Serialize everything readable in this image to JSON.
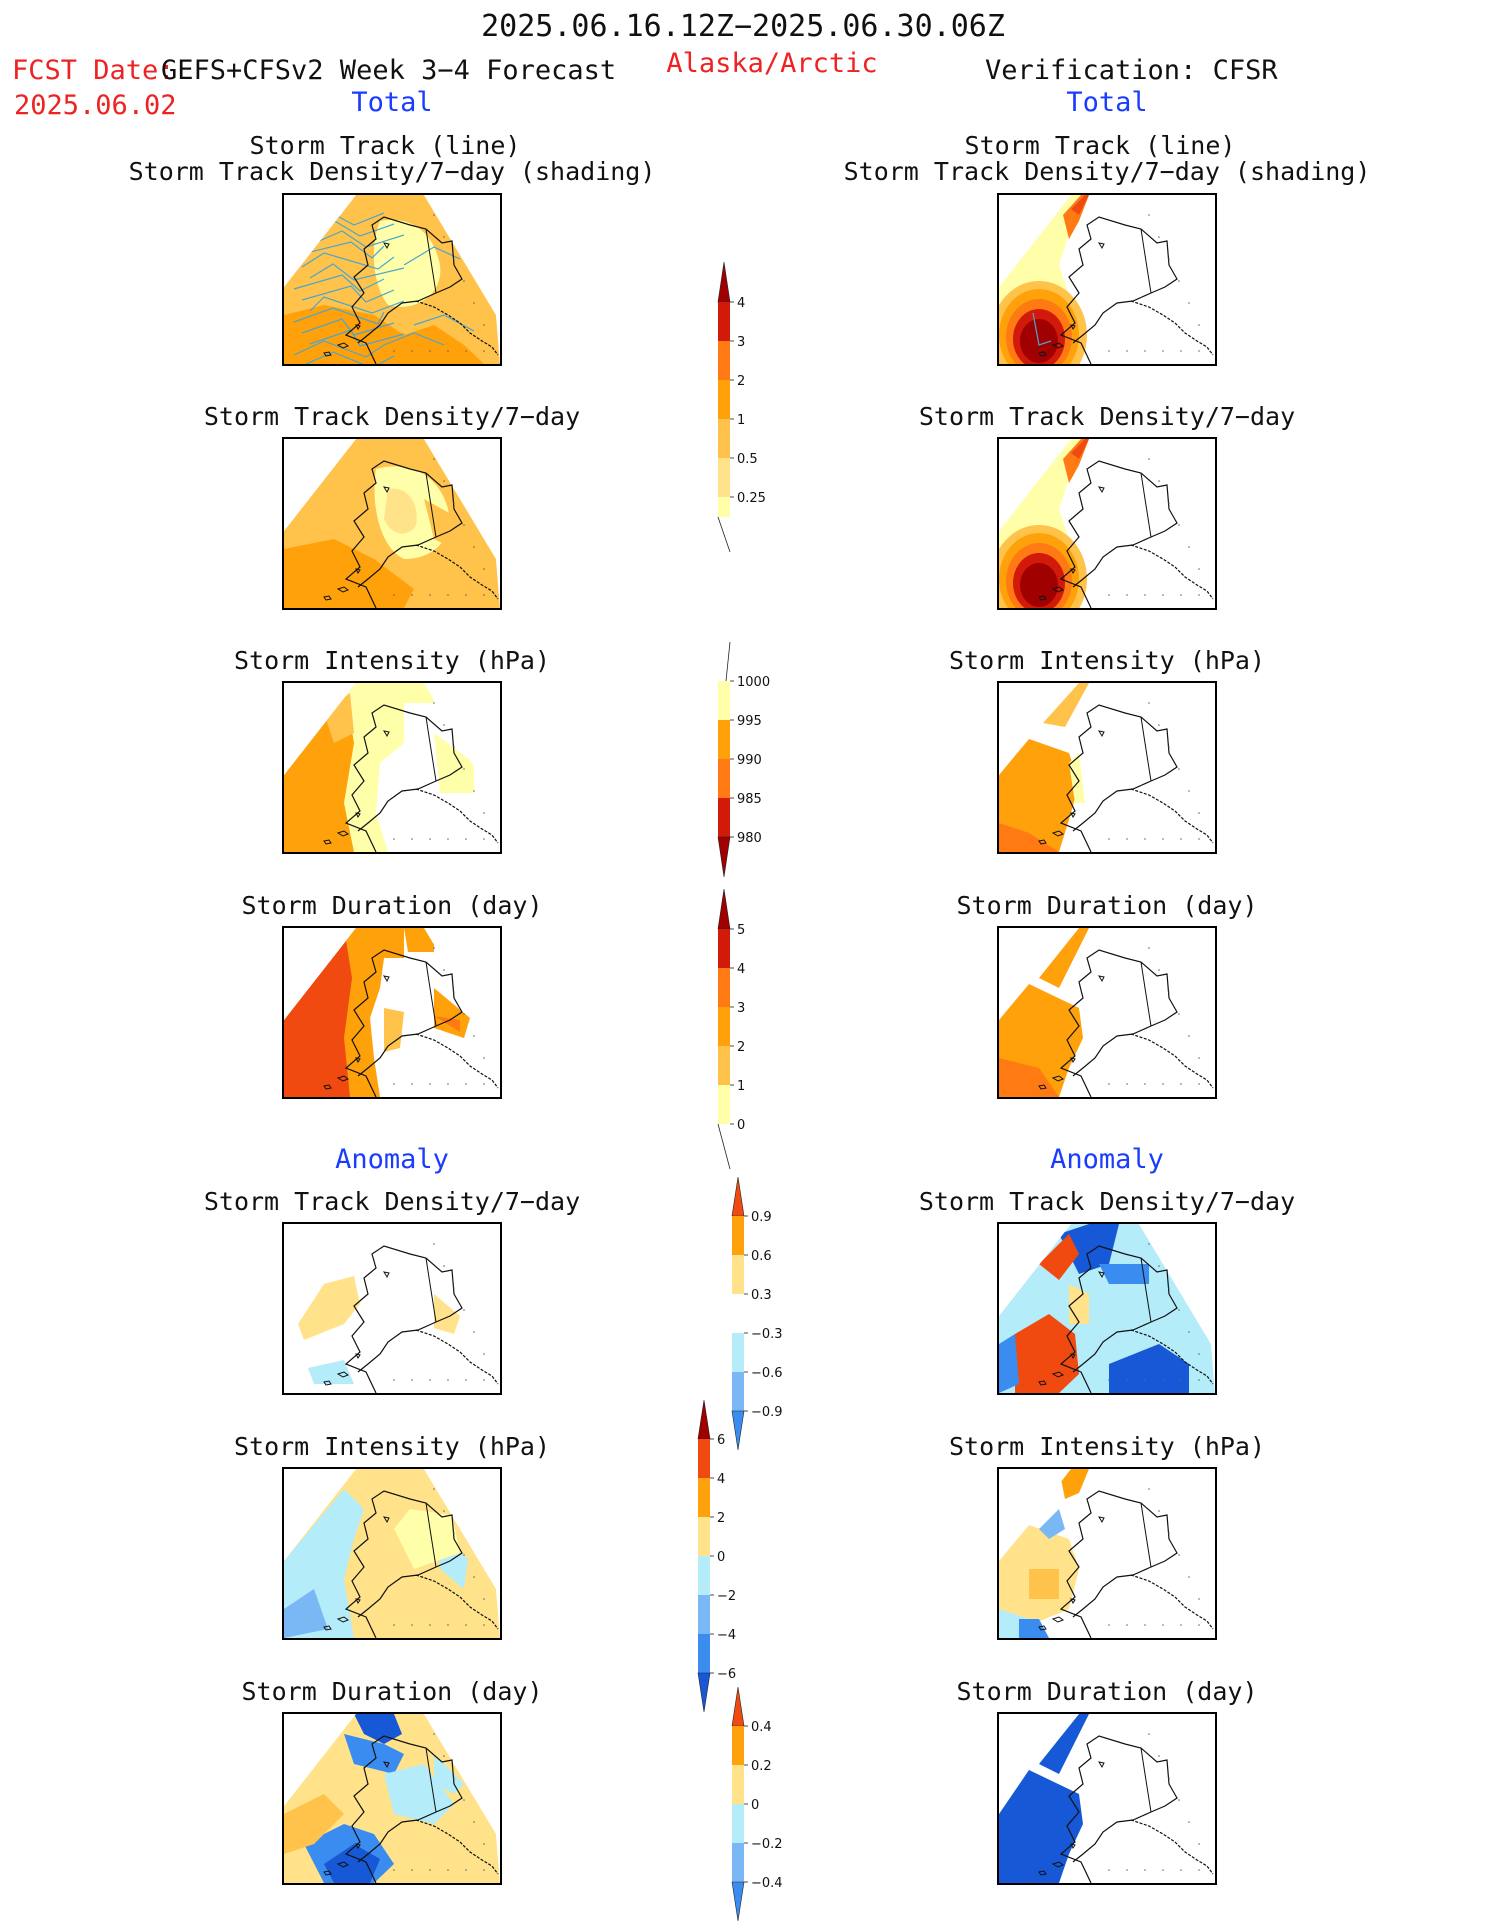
{
  "header": {
    "period": "2025.06.16.12Z−2025.06.30.06Z",
    "fcst_label": "FCST Date:",
    "model": "GEFS+CFSv2 Week 3−4 Forecast",
    "fcst_date": "2025.06.02",
    "region": "Alaska/Arctic",
    "verification": "Verification: CFSR"
  },
  "sections": {
    "total": "Total",
    "anomaly": "Anomaly"
  },
  "panel_titles": {
    "track_line": "Storm Track (line)",
    "track_shading": "Storm Track Density/7−day (shading)",
    "density": "Storm Track Density/7−day",
    "intensity": "Storm Intensity (hPa)",
    "duration": "Storm Duration (day)"
  },
  "colorbars": {
    "density_total": [
      "4",
      "3",
      "2",
      "1",
      "0.5",
      "0.25"
    ],
    "intensity_total": [
      "1000",
      "995",
      "990",
      "985",
      "980"
    ],
    "duration_total": [
      "5",
      "4",
      "3",
      "2",
      "1",
      "0"
    ],
    "density_anom": [
      "0.9",
      "0.6",
      "0.3",
      "−0.3",
      "−0.6",
      "−0.9"
    ],
    "intensity_anom": [
      "6",
      "4",
      "2",
      "0",
      "−2",
      "−4",
      "−6"
    ],
    "duration_anom": [
      "0.4",
      "0.2",
      "0",
      "−0.2",
      "−0.4"
    ]
  },
  "colors": {
    "light_yellow": "#ffffaa",
    "yellow": "#ffe28a",
    "light_orange": "#ffc24a",
    "orange": "#ffa10a",
    "dark_orange": "#ff7a12",
    "red_orange": "#f04a10",
    "red": "#d21a0a",
    "dark_red": "#a00000",
    "light_blue": "#b4ecfa",
    "mid_blue": "#7ab8f5",
    "blue": "#3a8cf0",
    "dark_blue": "#1658d6",
    "track_line": "#49a6cf"
  }
}
